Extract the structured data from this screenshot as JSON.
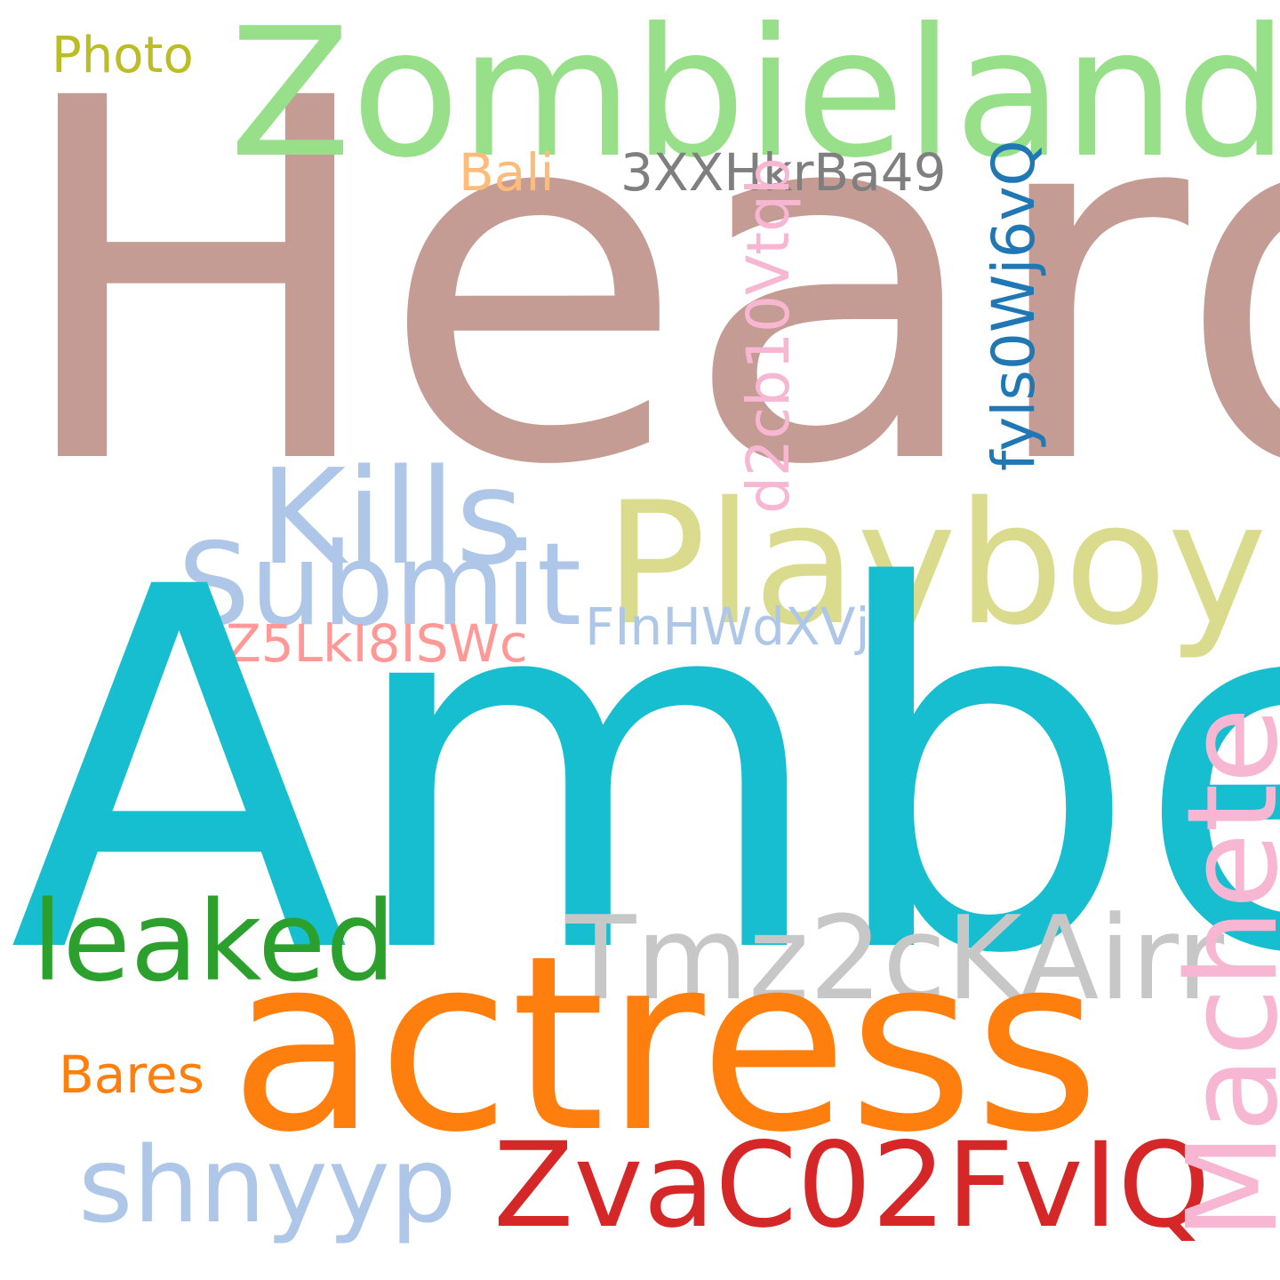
{
  "words": {
    "heard": {
      "text": "Heard",
      "color": "#c49c94"
    },
    "amber": {
      "text": "Amber",
      "color": "#17becf"
    },
    "zombieland": {
      "text": "Zombieland",
      "color": "#98df8a"
    },
    "actress": {
      "text": "actress",
      "color": "#ff7f0e"
    },
    "playboy": {
      "text": "Playboy",
      "color": "#dbdb8d"
    },
    "kills": {
      "text": "Kills",
      "color": "#aec7e8"
    },
    "submit": {
      "text": "Submit",
      "color": "#aec7e8"
    },
    "leaked": {
      "text": "leaked",
      "color": "#2ca02c"
    },
    "tmz": {
      "text": "Tmz2cKAirr",
      "color": "#c7c7c7"
    },
    "zvac": {
      "text": "ZvaC02FvIQ",
      "color": "#d62728"
    },
    "shnyyp": {
      "text": "shnyyp",
      "color": "#aec7e8"
    },
    "bares": {
      "text": "Bares",
      "color": "#ff7f0e"
    },
    "photo": {
      "text": "Photo",
      "color": "#bcbd22"
    },
    "bali": {
      "text": "Bali",
      "color": "#ffbb78"
    },
    "threexx": {
      "text": "3XXHkrBa49",
      "color": "#7f7f7f"
    },
    "z5lk": {
      "text": "Z5LkI8ISWc",
      "color": "#ff9896"
    },
    "finh": {
      "text": "FInHWdXVjr",
      "color": "#aec7e8"
    },
    "d2cb": {
      "text": "d2cb10Vtqb",
      "color": "#f7b6d2"
    },
    "fyls": {
      "text": "fyls0Wj6vQ",
      "color": "#1f77b4"
    },
    "machete": {
      "text": "Machete",
      "color": "#f7b6d2"
    }
  }
}
